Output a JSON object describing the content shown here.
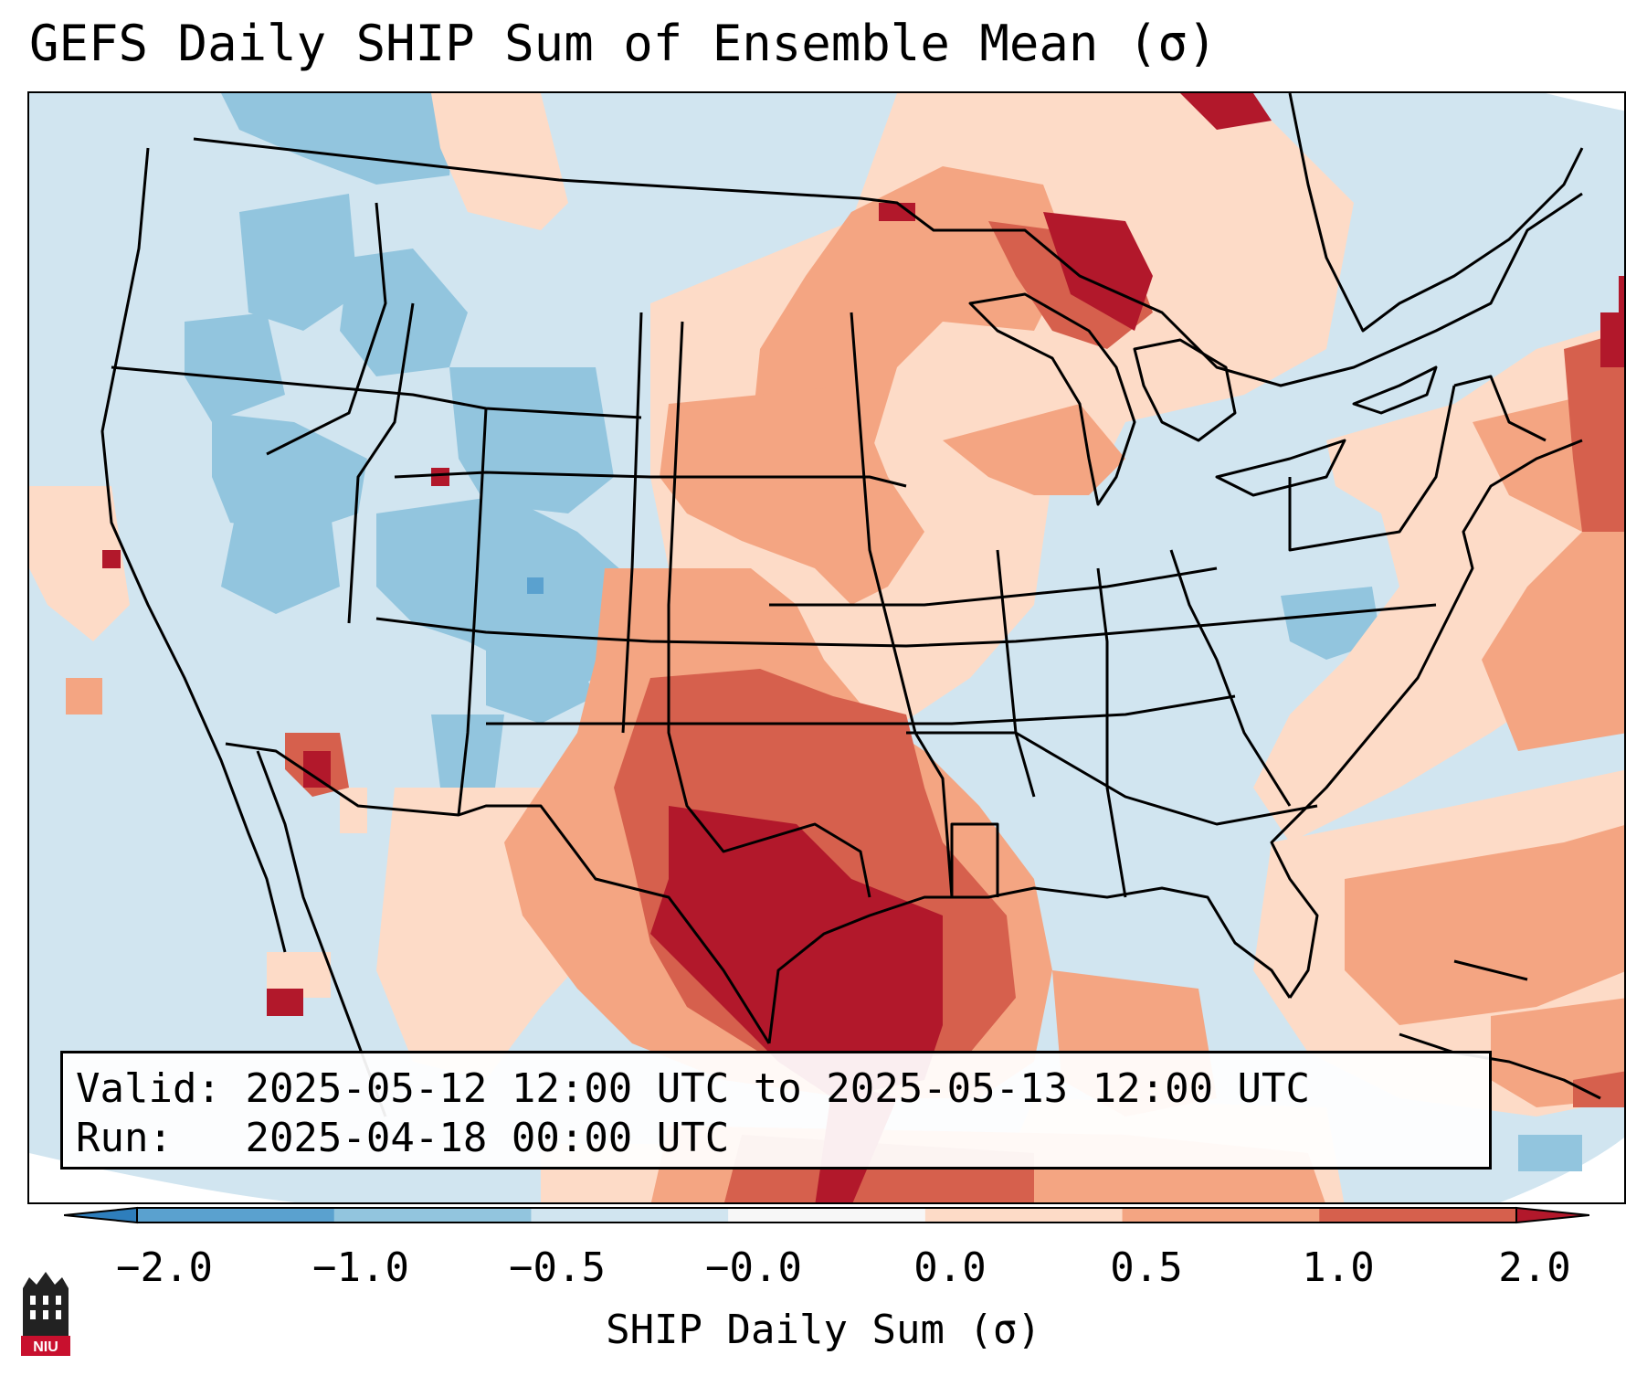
{
  "title": "GEFS Daily SHIP Sum of Ensemble Mean (σ)",
  "info": {
    "valid_label": "Valid:",
    "valid_value": "2025-05-12 12:00 UTC to 2025-05-13 12:00 UTC",
    "run_label": "Run:",
    "run_value": "2025-04-18 00:00 UTC"
  },
  "colorbar": {
    "label": "SHIP Daily Sum (σ)",
    "tick_labels": [
      "−2.0",
      "−1.0",
      "−0.5",
      "−0.0",
      "0.0",
      "0.5",
      "1.0",
      "2.0"
    ],
    "colors": [
      "#2e7ebc",
      "#5aa1cf",
      "#92c5de",
      "#d1e5f0",
      "#f7f7f7",
      "#fddbc7",
      "#f4a582",
      "#d6604d",
      "#b2182b"
    ]
  },
  "legend_colors": {
    "ocean_land_base": "#d1e5f0",
    "weak_negative": "#92c5de",
    "weak_positive": "#fddbc7",
    "moderate_positive": "#f4a582",
    "strong_positive": "#d6604d",
    "extreme_positive": "#b2182b"
  },
  "logo": {
    "text": "NIU",
    "color": "#c8102e"
  }
}
